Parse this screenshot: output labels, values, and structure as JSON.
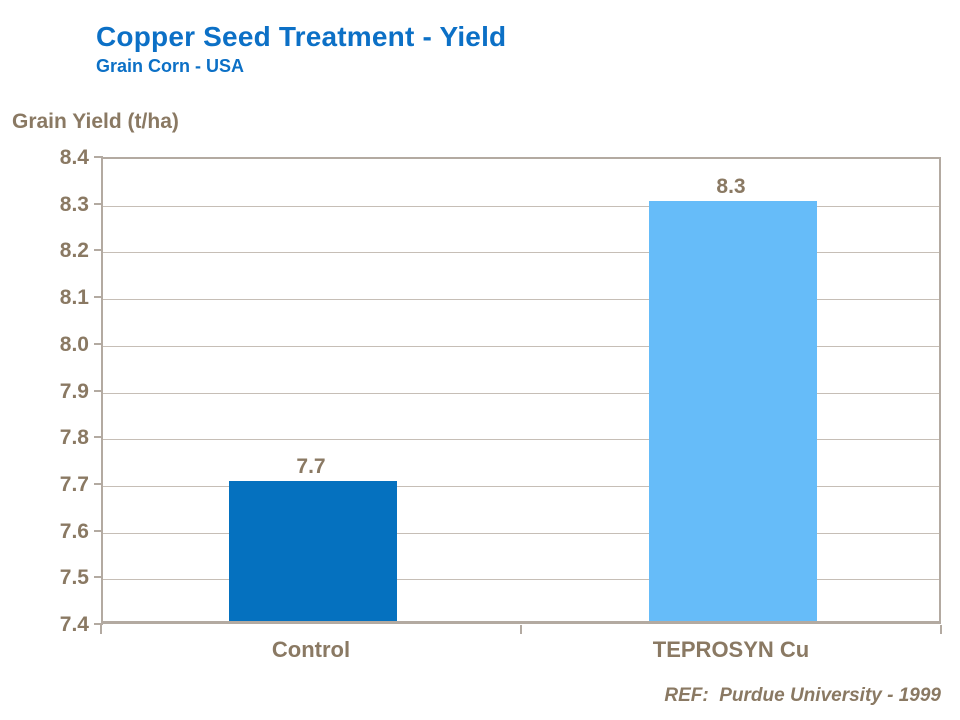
{
  "header": {
    "title": "Copper Seed Treatment - Yield",
    "subtitle": "Grain Corn - USA"
  },
  "footer": {
    "ref": "REF:  Purdue University - 1999"
  },
  "colors": {
    "title_blue": "#0C70C6",
    "text_brown": "#8A7963",
    "axis_line": "#B3AAA1",
    "gridline": "#C6BEB6",
    "bar_control": "#0571BF",
    "bar_teprosyn": "#66BCF9"
  },
  "chart_data": {
    "type": "bar",
    "title": "Copper Seed Treatment - Yield",
    "subtitle": "Grain Corn - USA",
    "ylabel": "Grain Yield (t/ha)",
    "xlabel": "",
    "categories": [
      "Control",
      "TEPROSYN Cu"
    ],
    "values": [
      7.7,
      8.3
    ],
    "value_labels": [
      "7.7",
      "8.3"
    ],
    "bar_colors": [
      "#0571BF",
      "#66BCF9"
    ],
    "ylim": [
      7.4,
      8.4
    ],
    "ytick_step": 0.1,
    "ytick_labels": [
      "7.4",
      "7.5",
      "7.6",
      "7.7",
      "7.8",
      "7.9",
      "8.0",
      "8.1",
      "8.2",
      "8.3",
      "8.4"
    ],
    "grid": true,
    "legend": "none",
    "ref": "REF:  Purdue University - 1999"
  }
}
